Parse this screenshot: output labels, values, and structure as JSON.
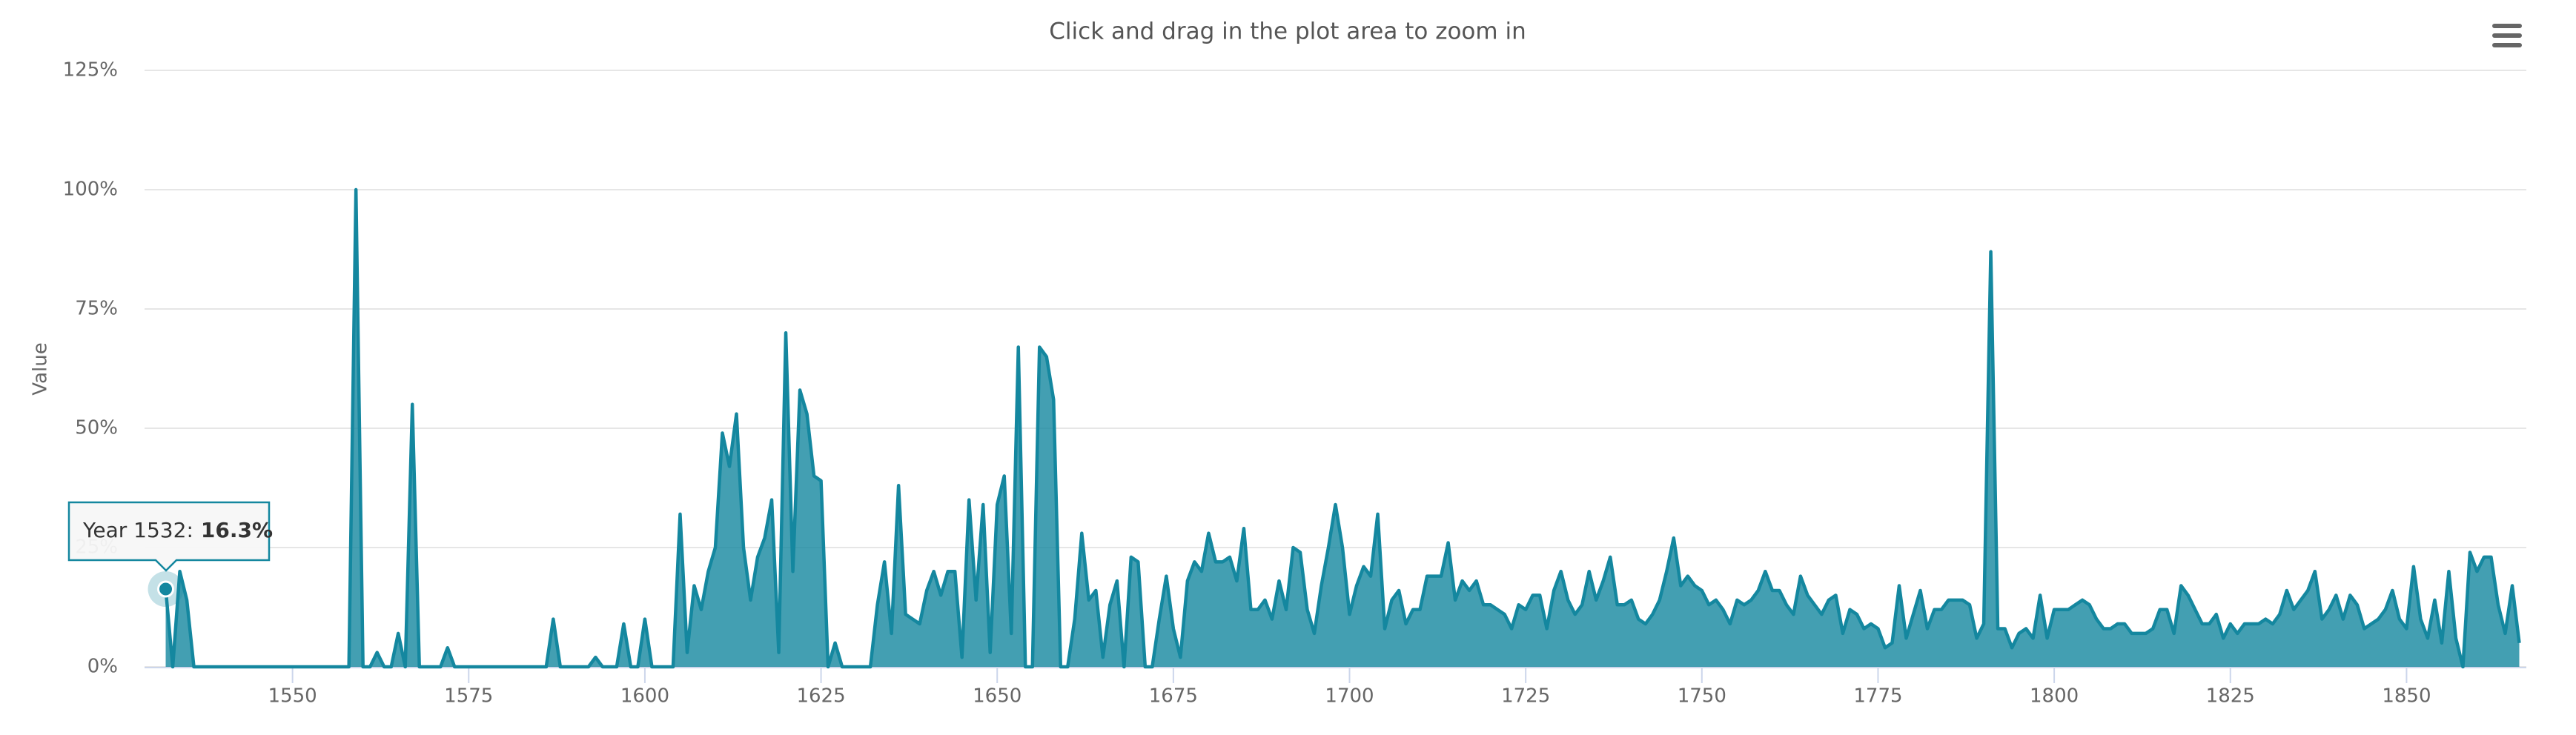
{
  "chart_data": {
    "type": "area",
    "title": "Click and drag in the plot area to zoom in",
    "y_label": "Value",
    "color": "#14879f",
    "grid": true,
    "xlim": [
      1529,
      1867
    ],
    "xticks": [
      1550,
      1575,
      1600,
      1625,
      1650,
      1675,
      1700,
      1725,
      1750,
      1775,
      1800,
      1825,
      1850
    ],
    "ylim": [
      0,
      125
    ],
    "yticks": [
      {
        "value": 0,
        "label": "0%"
      },
      {
        "value": 25,
        "label": "25%"
      },
      {
        "value": 50,
        "label": "50%"
      },
      {
        "value": 75,
        "label": "75%"
      },
      {
        "value": 100,
        "label": "100%"
      },
      {
        "value": 125,
        "label": "125%"
      }
    ],
    "tooltip": {
      "label": "Year 1532:",
      "value": "16.3%"
    },
    "x": [
      1532,
      1533,
      1534,
      1535,
      1536,
      1537,
      1538,
      1539,
      1540,
      1541,
      1542,
      1543,
      1544,
      1545,
      1546,
      1547,
      1548,
      1549,
      1550,
      1551,
      1552,
      1553,
      1554,
      1555,
      1556,
      1557,
      1558,
      1559,
      1560,
      1561,
      1562,
      1563,
      1564,
      1565,
      1566,
      1567,
      1568,
      1569,
      1570,
      1571,
      1572,
      1573,
      1574,
      1575,
      1576,
      1577,
      1578,
      1579,
      1580,
      1581,
      1582,
      1583,
      1584,
      1585,
      1586,
      1587,
      1588,
      1589,
      1590,
      1591,
      1592,
      1593,
      1594,
      1595,
      1596,
      1597,
      1598,
      1599,
      1600,
      1601,
      1602,
      1603,
      1604,
      1605,
      1606,
      1607,
      1608,
      1609,
      1610,
      1611,
      1612,
      1613,
      1614,
      1615,
      1616,
      1617,
      1618,
      1619,
      1620,
      1621,
      1622,
      1623,
      1624,
      1625,
      1626,
      1627,
      1628,
      1629,
      1630,
      1631,
      1632,
      1633,
      1634,
      1635,
      1636,
      1637,
      1638,
      1639,
      1640,
      1641,
      1642,
      1643,
      1644,
      1645,
      1646,
      1647,
      1648,
      1649,
      1650,
      1651,
      1652,
      1653,
      1654,
      1655,
      1656,
      1657,
      1658,
      1659,
      1660,
      1661,
      1662,
      1663,
      1664,
      1665,
      1666,
      1667,
      1668,
      1669,
      1670,
      1671,
      1672,
      1673,
      1674,
      1675,
      1676,
      1677,
      1678,
      1679,
      1680,
      1681,
      1682,
      1683,
      1684,
      1685,
      1686,
      1687,
      1688,
      1689,
      1690,
      1691,
      1692,
      1693,
      1694,
      1695,
      1696,
      1697,
      1698,
      1699,
      1700,
      1701,
      1702,
      1703,
      1704,
      1705,
      1706,
      1707,
      1708,
      1709,
      1710,
      1711,
      1712,
      1713,
      1714,
      1715,
      1716,
      1717,
      1718,
      1719,
      1720,
      1721,
      1722,
      1723,
      1724,
      1725,
      1726,
      1727,
      1728,
      1729,
      1730,
      1731,
      1732,
      1733,
      1734,
      1735,
      1736,
      1737,
      1738,
      1739,
      1740,
      1741,
      1742,
      1743,
      1744,
      1745,
      1746,
      1747,
      1748,
      1749,
      1750,
      1751,
      1752,
      1753,
      1754,
      1755,
      1756,
      1757,
      1758,
      1759,
      1760,
      1761,
      1762,
      1763,
      1764,
      1765,
      1766,
      1767,
      1768,
      1769,
      1770,
      1771,
      1772,
      1773,
      1774,
      1775,
      1776,
      1777,
      1778,
      1779,
      1780,
      1781,
      1782,
      1783,
      1784,
      1785,
      1786,
      1787,
      1788,
      1789,
      1790,
      1791,
      1792,
      1793,
      1794,
      1795,
      1796,
      1797,
      1798,
      1799,
      1800,
      1801,
      1802,
      1803,
      1804,
      1805,
      1806,
      1807,
      1808,
      1809,
      1810,
      1811,
      1812,
      1813,
      1814,
      1815,
      1816,
      1817,
      1818,
      1819,
      1820,
      1821,
      1822,
      1823,
      1824,
      1825,
      1826,
      1827,
      1828,
      1829,
      1830,
      1831,
      1832,
      1833,
      1834,
      1835,
      1836,
      1837,
      1838,
      1839,
      1840,
      1841,
      1842,
      1843,
      1844,
      1845,
      1846,
      1847,
      1848,
      1849,
      1850,
      1851,
      1852,
      1853,
      1854,
      1855,
      1856,
      1857,
      1858,
      1859,
      1860,
      1861,
      1862,
      1863,
      1864,
      1865,
      1866
    ],
    "values": [
      16.3,
      0,
      20,
      14,
      0,
      0,
      0,
      0,
      0,
      0,
      0,
      0,
      0,
      0,
      0,
      0,
      0,
      0,
      0,
      0,
      0,
      0,
      0,
      0,
      0,
      0,
      0,
      100,
      0,
      0,
      3,
      0,
      0,
      7,
      0,
      55,
      0,
      0,
      0,
      0,
      4,
      0,
      0,
      0,
      0,
      0,
      0,
      0,
      0,
      0,
      0,
      0,
      0,
      0,
      0,
      10,
      0,
      0,
      0,
      0,
      0,
      2,
      0,
      0,
      0,
      9,
      0,
      0,
      10,
      0,
      0,
      0,
      0,
      32,
      3,
      17,
      12,
      20,
      25,
      49,
      42,
      53,
      25,
      14,
      23,
      27,
      35,
      3,
      70,
      20,
      58,
      53,
      40,
      39,
      0,
      5,
      0,
      0,
      0,
      0,
      0,
      13,
      22,
      7,
      38,
      11,
      10,
      9,
      16,
      20,
      15,
      20,
      20,
      2,
      35,
      14,
      34,
      3,
      34,
      40,
      7,
      67,
      0,
      0,
      67,
      65,
      56,
      0,
      0,
      10,
      28,
      14,
      16,
      2,
      13,
      18,
      0,
      23,
      22,
      0,
      0,
      10,
      19,
      8,
      2,
      18,
      22,
      20,
      28,
      22,
      22,
      23,
      18,
      29,
      12,
      12,
      14,
      10,
      18,
      12,
      25,
      24,
      12,
      7,
      17,
      25,
      34,
      25,
      11,
      17,
      21,
      19,
      32,
      8,
      14,
      16,
      9,
      12,
      12,
      19,
      19,
      19,
      26,
      14,
      18,
      16,
      18,
      13,
      13,
      12,
      11,
      8,
      13,
      12,
      15,
      15,
      8,
      16,
      20,
      14,
      11,
      13,
      20,
      14,
      18,
      23,
      13,
      13,
      14,
      10,
      9,
      11,
      14,
      20,
      27,
      17,
      19,
      17,
      16,
      13,
      14,
      12,
      9,
      14,
      13,
      14,
      16,
      20,
      16,
      16,
      13,
      11,
      19,
      15,
      13,
      11,
      14,
      15,
      7,
      12,
      11,
      8,
      9,
      8,
      4,
      5,
      17,
      6,
      11,
      16,
      8,
      12,
      12,
      14,
      14,
      14,
      13,
      6,
      9,
      87,
      8,
      8,
      4,
      7,
      8,
      6,
      15,
      6,
      12,
      12,
      12,
      13,
      14,
      13,
      10,
      8,
      8,
      9,
      9,
      7,
      7,
      7,
      8,
      12,
      12,
      7,
      17,
      15,
      12,
      9,
      9,
      11,
      6,
      9,
      7,
      9,
      9,
      9,
      10,
      9,
      11,
      16,
      12,
      14,
      16,
      20,
      10,
      12,
      15,
      10,
      15,
      13,
      8,
      9,
      10,
      12,
      16,
      10,
      8,
      21,
      10,
      6,
      14,
      5,
      20,
      6,
      0,
      24,
      20,
      23,
      23,
      13,
      7,
      17,
      5
    ]
  }
}
